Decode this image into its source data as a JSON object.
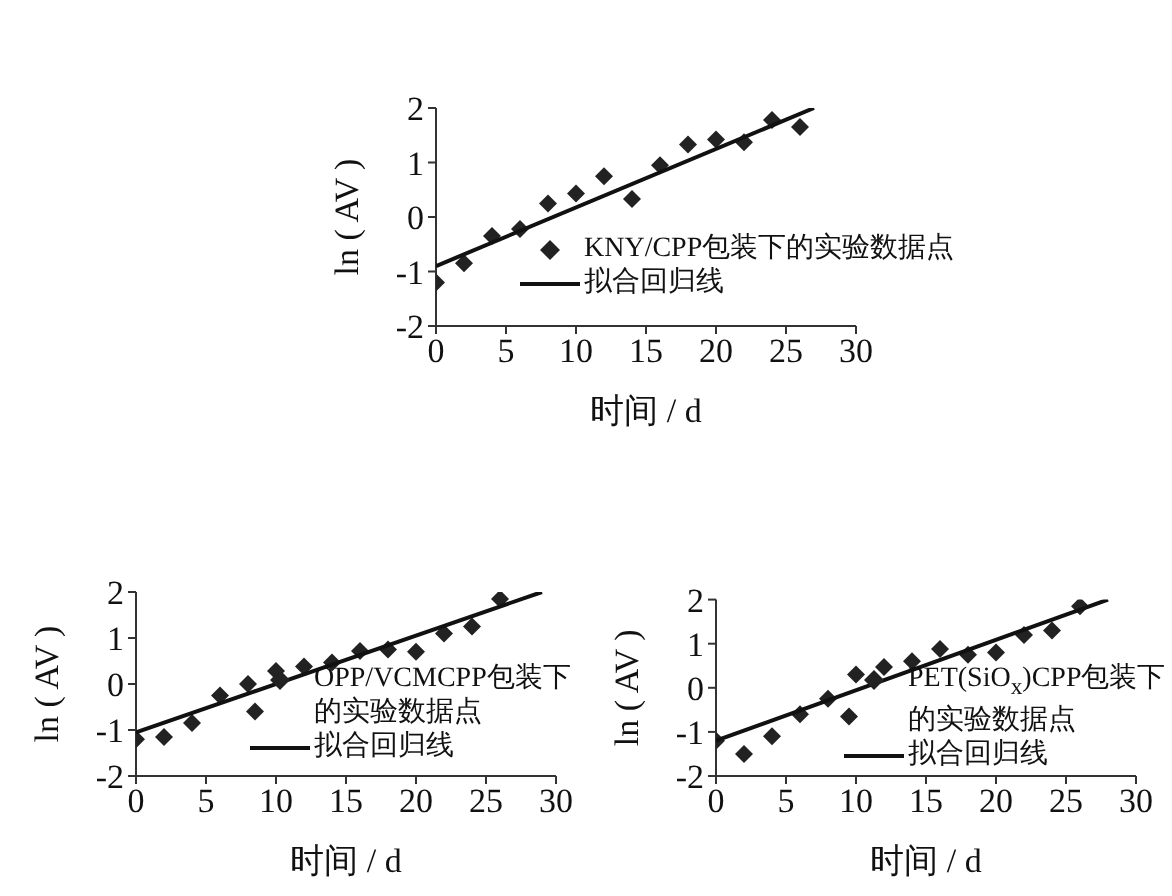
{
  "chart_data": [
    {
      "type": "scatter",
      "xlabel": "时间 / d",
      "ylabel": "ln ( AV )",
      "xlim": [
        0,
        30
      ],
      "xticks": [
        0,
        5,
        10,
        15,
        20,
        25,
        30
      ],
      "ylim": [
        -2,
        2
      ],
      "yticks": [
        -2,
        -1,
        0,
        1,
        2
      ],
      "grid": false,
      "legend": "bottom right",
      "marker": "diamond",
      "series": [
        {
          "name": "KNY/CPP包装下的实验数据点",
          "color": "#222222",
          "x": [
            0,
            2,
            4,
            6,
            8,
            10,
            12,
            14,
            16,
            18,
            20,
            22,
            24,
            26
          ],
          "values": [
            -1.2,
            -0.85,
            -0.35,
            -0.22,
            0.25,
            0.43,
            0.75,
            0.33,
            0.95,
            1.33,
            1.42,
            1.37,
            1.78,
            1.65
          ]
        },
        {
          "name": "拟合回归线",
          "type": "line",
          "marker": "none",
          "color": "#111111",
          "x": [
            0,
            27
          ],
          "values": [
            -0.9,
            2.0
          ]
        }
      ]
    },
    {
      "type": "scatter",
      "xlabel": "时间 / d",
      "ylabel": "ln ( AV )",
      "xlim": [
        0,
        30
      ],
      "xticks": [
        0,
        5,
        10,
        15,
        20,
        25,
        30
      ],
      "ylim": [
        -2,
        2
      ],
      "yticks": [
        -2,
        -1,
        0,
        1,
        2
      ],
      "grid": false,
      "legend": "bottom right",
      "marker": "diamond",
      "series": [
        {
          "name": "OPP/VCMCPP包装下的实验数据点",
          "color": "#222222",
          "x": [
            0,
            2,
            4,
            6,
            8,
            8.5,
            10,
            12,
            14,
            16,
            18,
            20,
            22,
            24,
            26
          ],
          "values": [
            -1.2,
            -1.15,
            -0.85,
            -0.25,
            0,
            -0.6,
            0.28,
            0.38,
            0.47,
            0.72,
            0.75,
            0.7,
            1.1,
            1.25,
            1.85
          ]
        },
        {
          "name": "拟合回归线",
          "type": "line",
          "marker": "none",
          "color": "#111111",
          "x": [
            0,
            29
          ],
          "values": [
            -1.05,
            2.0
          ]
        }
      ]
    },
    {
      "type": "scatter",
      "xlabel": "时间 / d",
      "ylabel": "ln ( AV )",
      "xlim": [
        0,
        30
      ],
      "xticks": [
        0,
        5,
        10,
        15,
        20,
        25,
        30
      ],
      "ylim": [
        -2,
        2
      ],
      "yticks": [
        -2,
        -1,
        0,
        1,
        2
      ],
      "grid": false,
      "legend": "bottom right",
      "marker": "diamond",
      "series": [
        {
          "name": "PET(SiO$_{x}$)CPP包装下的实验数据点",
          "color": "#222222",
          "x": [
            0,
            2,
            4,
            6,
            8,
            9.5,
            10,
            12,
            14,
            16,
            18,
            20,
            22,
            24,
            26
          ],
          "values": [
            -1.2,
            -1.5,
            -1.1,
            -0.6,
            -0.25,
            -0.65,
            0.3,
            0.47,
            0.6,
            0.88,
            0.75,
            0.8,
            1.2,
            1.3,
            1.85
          ]
        },
        {
          "name": "拟合回归线",
          "type": "line",
          "marker": "none",
          "color": "#111111",
          "x": [
            0,
            28
          ],
          "values": [
            -1.2,
            2.0
          ]
        }
      ]
    }
  ]
}
